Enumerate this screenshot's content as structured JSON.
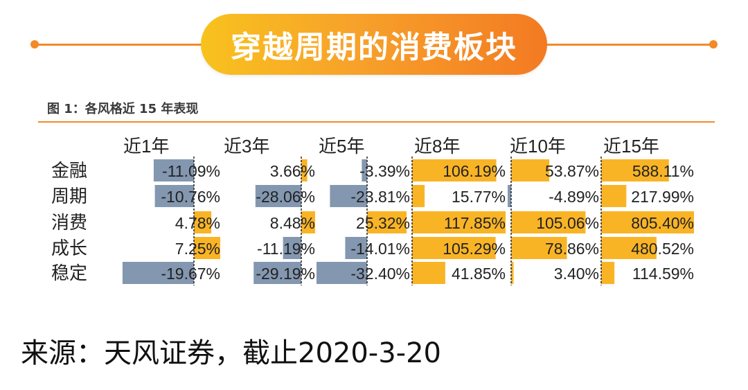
{
  "header": {
    "title": "穿越周期的消费板块"
  },
  "caption": "图 1：各风格近 15 年表现",
  "source": "来源：天风证券，截止2020-3-20",
  "colors": {
    "positive": "#f9b426",
    "negative": "#8497b0",
    "accent": "#f28a28",
    "text": "#222222"
  },
  "chart_data": {
    "type": "table",
    "title": "图 1：各风格近 15 年表现",
    "columns": [
      "近1年",
      "近3年",
      "近5年",
      "近8年",
      "近10年",
      "近15年"
    ],
    "rows": [
      "金融",
      "周期",
      "消费",
      "成长",
      "稳定"
    ],
    "values": [
      [
        -11.09,
        3.66,
        -3.39,
        106.19,
        53.87,
        588.11
      ],
      [
        -10.76,
        -28.06,
        -23.81,
        15.77,
        -4.89,
        217.99
      ],
      [
        4.78,
        8.48,
        25.32,
        117.85,
        105.06,
        805.4
      ],
      [
        7.25,
        -11.19,
        -14.01,
        105.29,
        78.86,
        480.52
      ],
      [
        -19.67,
        -29.19,
        -32.4,
        41.85,
        3.4,
        114.59
      ]
    ],
    "labels": [
      [
        "-11.09%",
        "3.66%",
        "-3.39%",
        "106.19%",
        "53.87%",
        "588.11%"
      ],
      [
        "-10.76%",
        "-28.06%",
        "-23.81%",
        "15.77%",
        "-4.89%",
        "217.99%"
      ],
      [
        "4.78%",
        "8.48%",
        "25.32%",
        "117.85%",
        "105.06%",
        "805.40%"
      ],
      [
        "7.25%",
        "-11.19%",
        "-14.01%",
        "105.29%",
        "78.86%",
        "480.52%"
      ],
      [
        "-19.67%",
        "-29.19%",
        "-32.40%",
        "41.85%",
        "3.40%",
        "114.59%"
      ]
    ]
  }
}
